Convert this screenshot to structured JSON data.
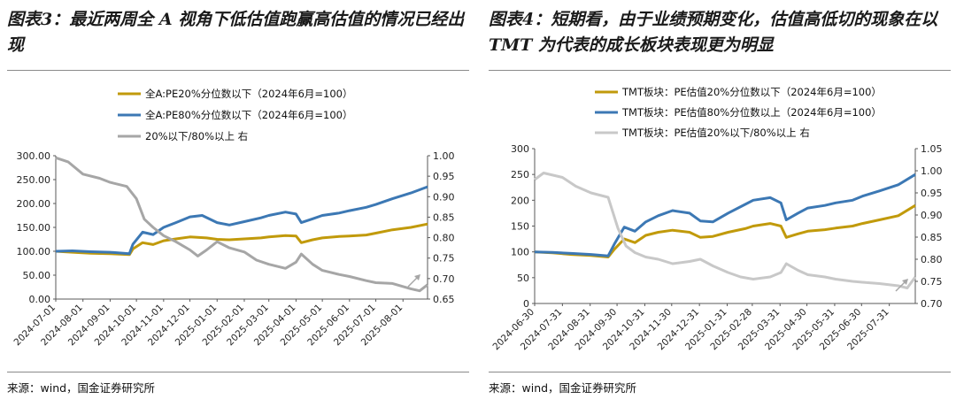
{
  "charts": [
    {
      "title": "图表3：最近两周全 A 视角下低估值跑赢高估值的情况已经出现",
      "source": "来源：wind，国金证券研究所",
      "chart_data": {
        "type": "line",
        "xlabel": "",
        "ylabel": "",
        "x_ticks": [
          "2024-07-01",
          "2024-08-01",
          "2024-09-01",
          "2024-10-01",
          "2024-11-01",
          "2024-12-01",
          "2025-01-01",
          "2025-02-01",
          "2025-03-01",
          "2025-04-01",
          "2025-05-01",
          "2025-06-01",
          "2025-07-01",
          "2025-08-01"
        ],
        "x_range": [
          "2024-07-01",
          "2025-08-29"
        ],
        "y_left": {
          "min": 0,
          "max": 300,
          "ticks": [
            "0.00",
            "50.00",
            "100.00",
            "150.00",
            "200.00",
            "250.00",
            "300.00"
          ]
        },
        "y_right": {
          "min": 0.65,
          "max": 1.0,
          "ticks": [
            "0.65",
            "0.70",
            "0.75",
            "0.80",
            "0.85",
            "0.90",
            "0.95",
            "1.00"
          ]
        },
        "grid": false,
        "legend_position": "top-center",
        "series": [
          {
            "name": "全A:PE20%分位数以下（2024年6月=100）",
            "color": "#c19a0b",
            "axis": "left",
            "points": [
              [
                "2024-07-01",
                100
              ],
              [
                "2024-07-20",
                98
              ],
              [
                "2024-08-10",
                96
              ],
              [
                "2024-09-01",
                95
              ],
              [
                "2024-09-23",
                93
              ],
              [
                "2024-09-27",
                105
              ],
              [
                "2024-10-08",
                118
              ],
              [
                "2024-10-20",
                114
              ],
              [
                "2024-11-01",
                122
              ],
              [
                "2024-11-15",
                126
              ],
              [
                "2024-12-01",
                130
              ],
              [
                "2024-12-20",
                128
              ],
              [
                "2025-01-01",
                125
              ],
              [
                "2025-01-15",
                124
              ],
              [
                "2025-02-01",
                126
              ],
              [
                "2025-02-20",
                128
              ],
              [
                "2025-03-01",
                130
              ],
              [
                "2025-03-20",
                133
              ],
              [
                "2025-04-01",
                132
              ],
              [
                "2025-04-07",
                118
              ],
              [
                "2025-04-20",
                124
              ],
              [
                "2025-05-01",
                128
              ],
              [
                "2025-05-20",
                131
              ],
              [
                "2025-06-01",
                132
              ],
              [
                "2025-06-20",
                134
              ],
              [
                "2025-07-01",
                138
              ],
              [
                "2025-07-20",
                145
              ],
              [
                "2025-08-10",
                150
              ],
              [
                "2025-08-29",
                157
              ]
            ]
          },
          {
            "name": "全A:PE80%分位数以下（2024年6月=100）",
            "color": "#3c78b4",
            "axis": "left",
            "points": [
              [
                "2024-07-01",
                100
              ],
              [
                "2024-07-20",
                101
              ],
              [
                "2024-08-10",
                99
              ],
              [
                "2024-09-01",
                98
              ],
              [
                "2024-09-23",
                95
              ],
              [
                "2024-09-27",
                115
              ],
              [
                "2024-10-08",
                140
              ],
              [
                "2024-10-20",
                135
              ],
              [
                "2024-11-01",
                150
              ],
              [
                "2024-11-15",
                160
              ],
              [
                "2024-12-01",
                172
              ],
              [
                "2024-12-15",
                175
              ],
              [
                "2025-01-01",
                160
              ],
              [
                "2025-01-15",
                155
              ],
              [
                "2025-02-01",
                162
              ],
              [
                "2025-02-20",
                170
              ],
              [
                "2025-03-01",
                175
              ],
              [
                "2025-03-20",
                182
              ],
              [
                "2025-04-01",
                178
              ],
              [
                "2025-04-07",
                160
              ],
              [
                "2025-04-20",
                168
              ],
              [
                "2025-05-01",
                175
              ],
              [
                "2025-05-20",
                180
              ],
              [
                "2025-06-01",
                185
              ],
              [
                "2025-06-20",
                192
              ],
              [
                "2025-07-01",
                198
              ],
              [
                "2025-07-20",
                210
              ],
              [
                "2025-08-10",
                222
              ],
              [
                "2025-08-29",
                235
              ]
            ]
          },
          {
            "name": "20%以下/80%以上 右",
            "color": "#a6a6a6",
            "axis": "right",
            "points": [
              [
                "2024-07-01",
                0.995
              ],
              [
                "2024-07-15",
                0.985
              ],
              [
                "2024-08-01",
                0.955
              ],
              [
                "2024-08-20",
                0.945
              ],
              [
                "2024-09-01",
                0.935
              ],
              [
                "2024-09-20",
                0.925
              ],
              [
                "2024-10-01",
                0.895
              ],
              [
                "2024-10-10",
                0.845
              ],
              [
                "2024-10-20",
                0.825
              ],
              [
                "2024-11-01",
                0.805
              ],
              [
                "2024-11-15",
                0.79
              ],
              [
                "2024-12-01",
                0.77
              ],
              [
                "2024-12-10",
                0.755
              ],
              [
                "2024-12-20",
                0.77
              ],
              [
                "2025-01-01",
                0.79
              ],
              [
                "2025-01-15",
                0.775
              ],
              [
                "2025-02-01",
                0.765
              ],
              [
                "2025-02-15",
                0.745
              ],
              [
                "2025-03-01",
                0.735
              ],
              [
                "2025-03-20",
                0.725
              ],
              [
                "2025-04-01",
                0.74
              ],
              [
                "2025-04-07",
                0.76
              ],
              [
                "2025-04-20",
                0.735
              ],
              [
                "2025-05-01",
                0.72
              ],
              [
                "2025-05-20",
                0.71
              ],
              [
                "2025-06-01",
                0.705
              ],
              [
                "2025-06-20",
                0.695
              ],
              [
                "2025-07-01",
                0.69
              ],
              [
                "2025-07-20",
                0.688
              ],
              [
                "2025-08-10",
                0.675
              ],
              [
                "2025-08-20",
                0.67
              ],
              [
                "2025-08-29",
                0.685
              ]
            ]
          }
        ],
        "annotation": "arrow-up-right"
      }
    },
    {
      "title": "图表4：短期看，由于业绩预期变化，估值高低切的现象在以 TMT 为代表的成长板块表现更为明显",
      "source": "来源：wind，国金证券研究所",
      "chart_data": {
        "type": "line",
        "xlabel": "",
        "ylabel": "",
        "x_ticks": [
          "2024-06-30",
          "2024-07-31",
          "2024-08-31",
          "2024-09-30",
          "2024-10-31",
          "2024-11-30",
          "2024-12-31",
          "2025-01-31",
          "2025-02-28",
          "2025-03-31",
          "2025-04-30",
          "2025-05-31",
          "2025-06-30",
          "2025-07-31"
        ],
        "x_range": [
          "2024-06-30",
          "2025-08-29"
        ],
        "y_left": {
          "min": 0,
          "max": 300,
          "ticks": [
            "0",
            "50",
            "100",
            "150",
            "200",
            "250",
            "300"
          ]
        },
        "y_right": {
          "min": 0.7,
          "max": 1.05,
          "ticks": [
            "0.70",
            "0.75",
            "0.80",
            "0.85",
            "0.90",
            "0.95",
            "1.00",
            "1.05"
          ]
        },
        "grid": false,
        "legend_position": "top-center",
        "series": [
          {
            "name": "TMT板块：PE估值20%分位数以下（2024年6月=100）",
            "color": "#c19a0b",
            "axis": "left",
            "points": [
              [
                "2024-06-30",
                100
              ],
              [
                "2024-07-20",
                98
              ],
              [
                "2024-08-10",
                95
              ],
              [
                "2024-09-01",
                93
              ],
              [
                "2024-09-20",
                90
              ],
              [
                "2024-09-27",
                105
              ],
              [
                "2024-10-08",
                125
              ],
              [
                "2024-10-20",
                118
              ],
              [
                "2024-11-01",
                132
              ],
              [
                "2024-11-15",
                138
              ],
              [
                "2024-12-01",
                142
              ],
              [
                "2024-12-20",
                138
              ],
              [
                "2025-01-01",
                128
              ],
              [
                "2025-01-15",
                130
              ],
              [
                "2025-02-01",
                138
              ],
              [
                "2025-02-20",
                145
              ],
              [
                "2025-03-01",
                150
              ],
              [
                "2025-03-20",
                155
              ],
              [
                "2025-04-01",
                150
              ],
              [
                "2025-04-07",
                128
              ],
              [
                "2025-04-20",
                135
              ],
              [
                "2025-05-01",
                140
              ],
              [
                "2025-05-20",
                143
              ],
              [
                "2025-06-01",
                146
              ],
              [
                "2025-06-20",
                150
              ],
              [
                "2025-07-01",
                155
              ],
              [
                "2025-07-20",
                162
              ],
              [
                "2025-08-10",
                170
              ],
              [
                "2025-08-29",
                190
              ]
            ]
          },
          {
            "name": "TMT板块：PE估值80%分位数以上（2024年6月=100）",
            "color": "#3c78b4",
            "axis": "left",
            "points": [
              [
                "2024-06-30",
                100
              ],
              [
                "2024-07-20",
                99
              ],
              [
                "2024-08-10",
                97
              ],
              [
                "2024-09-01",
                95
              ],
              [
                "2024-09-20",
                92
              ],
              [
                "2024-09-27",
                115
              ],
              [
                "2024-10-08",
                148
              ],
              [
                "2024-10-20",
                140
              ],
              [
                "2024-11-01",
                158
              ],
              [
                "2024-11-15",
                170
              ],
              [
                "2024-12-01",
                180
              ],
              [
                "2024-12-20",
                175
              ],
              [
                "2025-01-01",
                160
              ],
              [
                "2025-01-15",
                158
              ],
              [
                "2025-02-01",
                175
              ],
              [
                "2025-02-20",
                192
              ],
              [
                "2025-03-01",
                200
              ],
              [
                "2025-03-20",
                205
              ],
              [
                "2025-04-01",
                195
              ],
              [
                "2025-04-07",
                162
              ],
              [
                "2025-04-20",
                175
              ],
              [
                "2025-05-01",
                185
              ],
              [
                "2025-05-20",
                190
              ],
              [
                "2025-06-01",
                195
              ],
              [
                "2025-06-20",
                200
              ],
              [
                "2025-07-01",
                208
              ],
              [
                "2025-07-20",
                218
              ],
              [
                "2025-08-10",
                230
              ],
              [
                "2025-08-29",
                250
              ]
            ]
          },
          {
            "name": "TMT板块：PE估值20%以下/80%以上 右",
            "color": "#c8c8c8",
            "axis": "right",
            "points": [
              [
                "2024-06-30",
                0.98
              ],
              [
                "2024-07-10",
                0.995
              ],
              [
                "2024-07-31",
                0.985
              ],
              [
                "2024-08-15",
                0.965
              ],
              [
                "2024-09-01",
                0.95
              ],
              [
                "2024-09-20",
                0.94
              ],
              [
                "2024-10-01",
                0.87
              ],
              [
                "2024-10-10",
                0.83
              ],
              [
                "2024-10-20",
                0.815
              ],
              [
                "2024-11-01",
                0.805
              ],
              [
                "2024-11-15",
                0.8
              ],
              [
                "2024-12-01",
                0.79
              ],
              [
                "2024-12-20",
                0.795
              ],
              [
                "2025-01-01",
                0.8
              ],
              [
                "2025-01-15",
                0.785
              ],
              [
                "2025-02-01",
                0.77
              ],
              [
                "2025-02-15",
                0.76
              ],
              [
                "2025-03-01",
                0.755
              ],
              [
                "2025-03-20",
                0.76
              ],
              [
                "2025-04-01",
                0.77
              ],
              [
                "2025-04-07",
                0.79
              ],
              [
                "2025-04-20",
                0.775
              ],
              [
                "2025-05-01",
                0.765
              ],
              [
                "2025-05-20",
                0.76
              ],
              [
                "2025-06-01",
                0.755
              ],
              [
                "2025-06-20",
                0.75
              ],
              [
                "2025-07-01",
                0.748
              ],
              [
                "2025-07-20",
                0.745
              ],
              [
                "2025-08-10",
                0.74
              ],
              [
                "2025-08-20",
                0.735
              ],
              [
                "2025-08-29",
                0.76
              ]
            ]
          }
        ],
        "annotation": "arrow-up-right"
      }
    }
  ]
}
